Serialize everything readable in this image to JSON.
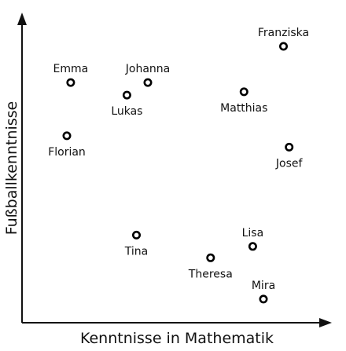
{
  "chart_data": {
    "type": "scatter",
    "xlabel": "Kenntnisse in Mathematik",
    "ylabel": "Fußballkenntnisse",
    "xlim": [
      0,
      100
    ],
    "ylim": [
      0,
      100
    ],
    "grid": false,
    "axis_ticks": false,
    "marker": "open-circle",
    "colors": {
      "marker": "#000000",
      "axis": "#111111",
      "text": "#111111"
    },
    "points": [
      {
        "name": "Franziska",
        "x": 87.5,
        "y": 92.4,
        "label_pos": "above"
      },
      {
        "name": "Emma",
        "x": 16.3,
        "y": 80.3,
        "label_pos": "above"
      },
      {
        "name": "Johanna",
        "x": 42.1,
        "y": 80.3,
        "label_pos": "above"
      },
      {
        "name": "Lukas",
        "x": 35.1,
        "y": 76.1,
        "label_pos": "below"
      },
      {
        "name": "Matthias",
        "x": 74.3,
        "y": 77.2,
        "label_pos": "below"
      },
      {
        "name": "Florian",
        "x": 15.0,
        "y": 62.5,
        "label_pos": "below"
      },
      {
        "name": "Josef",
        "x": 89.4,
        "y": 58.7,
        "label_pos": "below"
      },
      {
        "name": "Tina",
        "x": 38.3,
        "y": 29.3,
        "label_pos": "below"
      },
      {
        "name": "Lisa",
        "x": 77.2,
        "y": 25.5,
        "label_pos": "above"
      },
      {
        "name": "Theresa",
        "x": 63.1,
        "y": 21.7,
        "label_pos": "below"
      },
      {
        "name": "Mira",
        "x": 80.8,
        "y": 7.9,
        "label_pos": "above"
      }
    ]
  }
}
